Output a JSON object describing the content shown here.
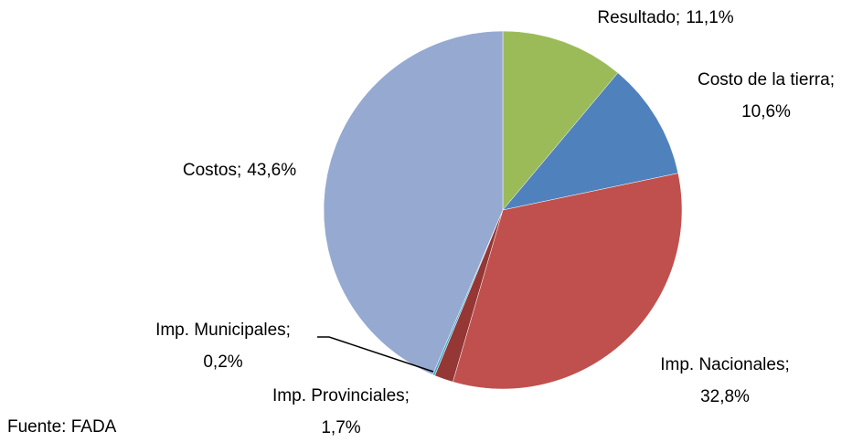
{
  "chart_data": {
    "type": "pie",
    "categories": [
      "Resultado;",
      "Costo de la tierra;",
      "Imp. Nacionales;",
      "Imp. Provinciales;",
      "Imp. Municipales;",
      "Costos;"
    ],
    "values": [
      11.1,
      10.6,
      32.8,
      1.7,
      0.2,
      43.6
    ],
    "value_labels": [
      "11,1%",
      "10,6%",
      "32,8%",
      "1,7%",
      "0,2%",
      "43,6%"
    ],
    "colors": [
      "#9bbb59",
      "#4f81bd",
      "#c0504d",
      "#953735",
      "#4bacc6",
      "#95a9d1"
    ],
    "source": "Fuente: FADA"
  }
}
